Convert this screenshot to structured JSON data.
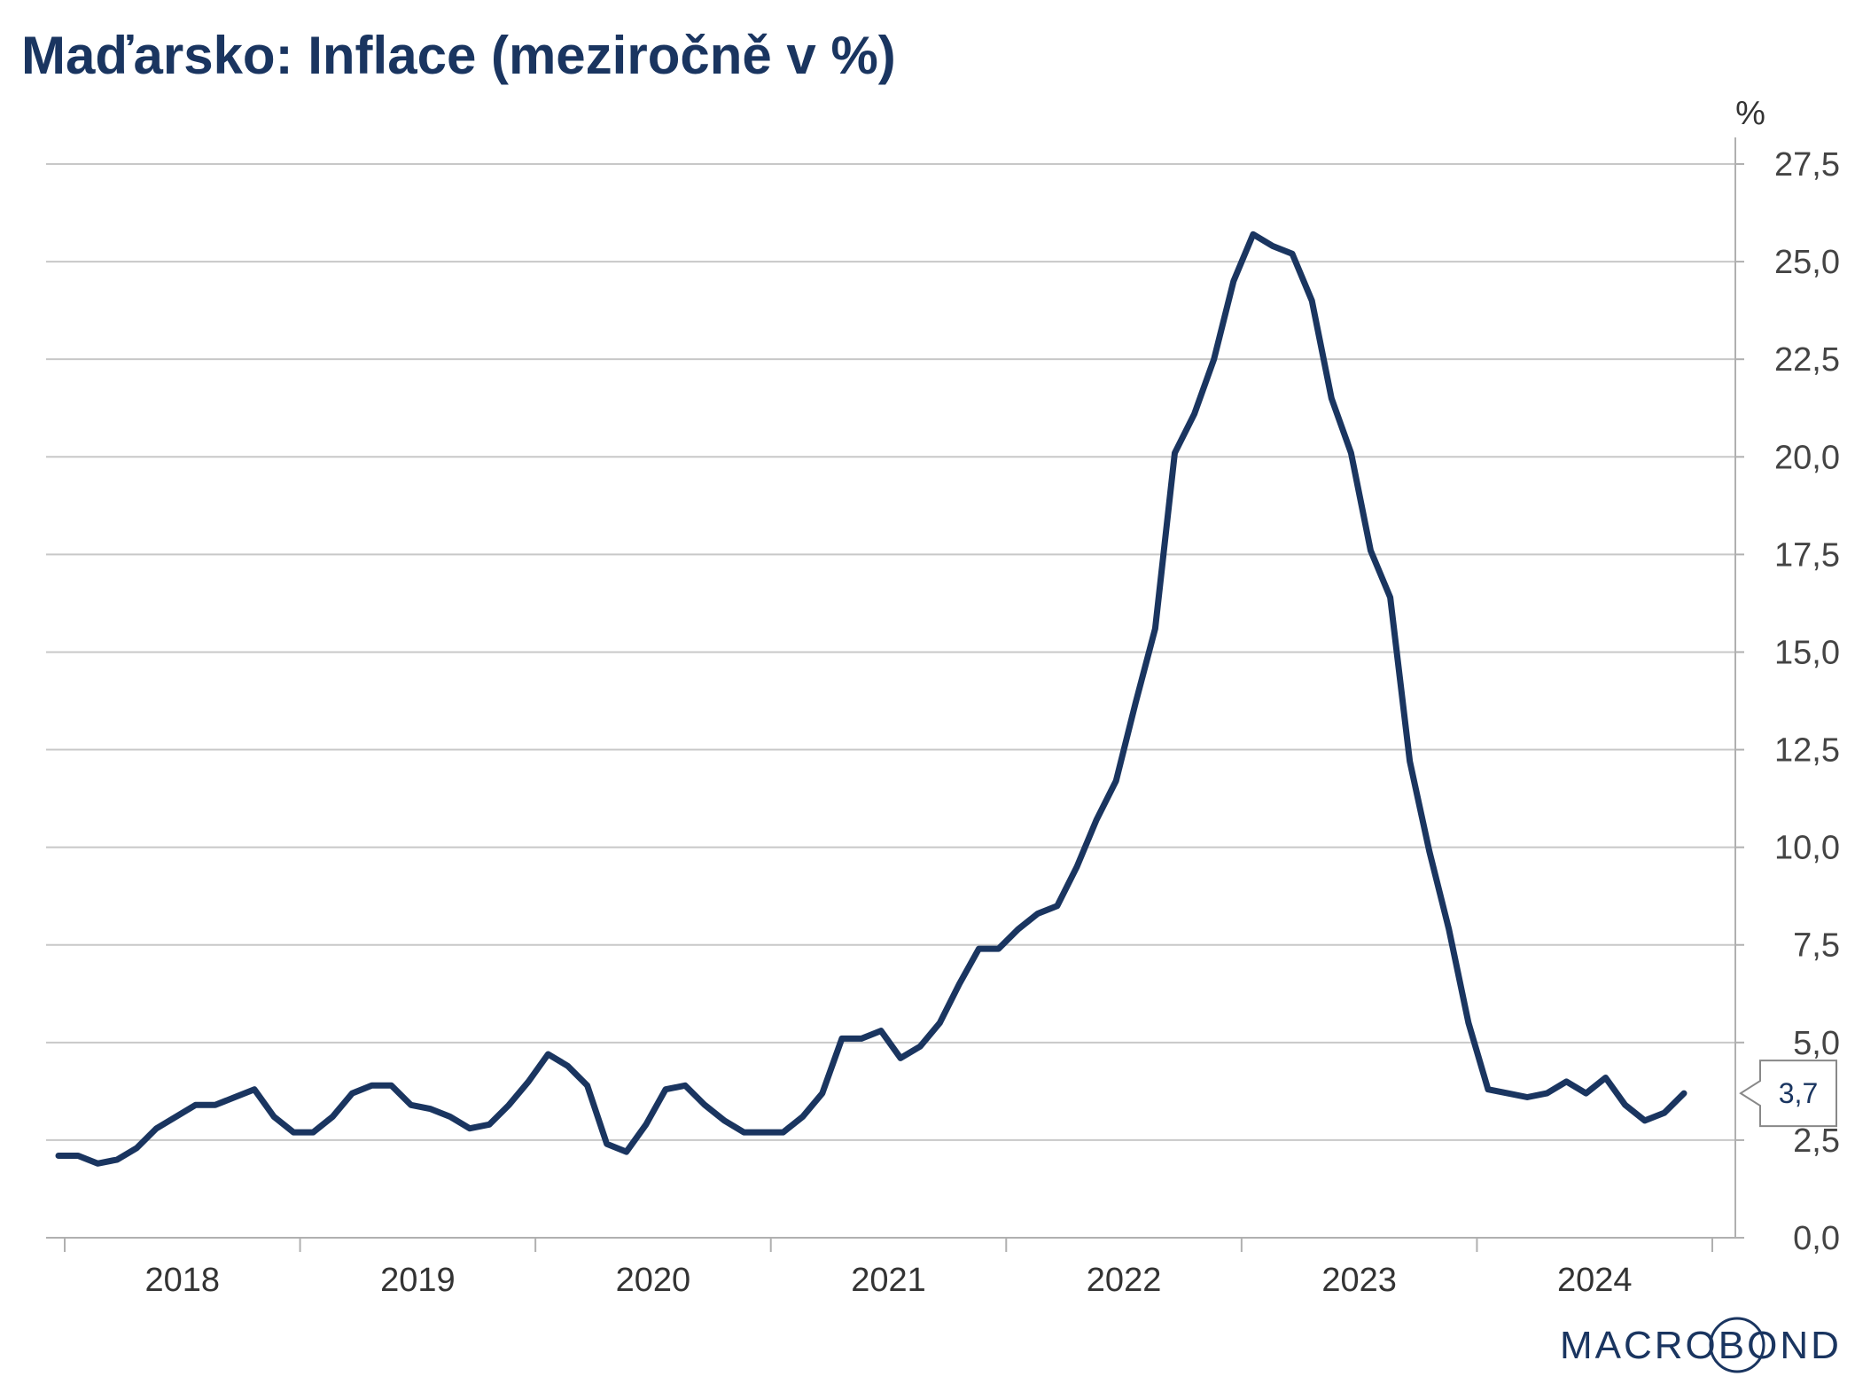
{
  "title": "Maďarsko: Inflace (meziročně v %)",
  "brand": {
    "logo_text": "MACROBOND",
    "accent_color": "#1a3560"
  },
  "chart_data": {
    "type": "line",
    "title": "Maďarsko: Inflace (meziročně v %)",
    "xlabel": "",
    "ylabel": "%",
    "ylim": [
      0,
      27.5
    ],
    "y_ticks": [
      "0,0",
      "2,5",
      "5,0",
      "7,5",
      "10,0",
      "12,5",
      "15,0",
      "17,5",
      "20,0",
      "22,5",
      "25,0",
      "27,5"
    ],
    "x_tick_labels": [
      "2018",
      "2019",
      "2020",
      "2021",
      "2022",
      "2023",
      "2024"
    ],
    "grid": true,
    "y_axis_position": "right",
    "last_value_label": "3,7",
    "series": [
      {
        "color": "#1a3560",
        "start": "2018-01",
        "frequency": "monthly",
        "values": [
          2.1,
          2.1,
          1.9,
          2.0,
          2.3,
          2.8,
          3.1,
          3.4,
          3.4,
          3.6,
          3.8,
          3.1,
          2.7,
          2.7,
          3.1,
          3.7,
          3.9,
          3.9,
          3.4,
          3.3,
          3.1,
          2.8,
          2.9,
          3.4,
          4.0,
          4.7,
          4.4,
          3.9,
          2.4,
          2.2,
          2.9,
          3.8,
          3.9,
          3.4,
          3.0,
          2.7,
          2.7,
          2.7,
          3.1,
          3.7,
          5.1,
          5.1,
          5.3,
          4.6,
          4.9,
          5.5,
          6.5,
          7.4,
          7.4,
          7.9,
          8.3,
          8.5,
          9.5,
          10.7,
          11.7,
          13.7,
          15.6,
          20.1,
          21.1,
          22.5,
          24.5,
          25.7,
          25.4,
          25.2,
          24.0,
          21.5,
          20.1,
          17.6,
          16.4,
          12.2,
          9.9,
          7.9,
          5.5,
          3.8,
          3.7,
          3.6,
          3.7,
          4.0,
          3.7,
          4.1,
          3.4,
          3.0,
          3.2,
          3.7
        ]
      }
    ]
  }
}
